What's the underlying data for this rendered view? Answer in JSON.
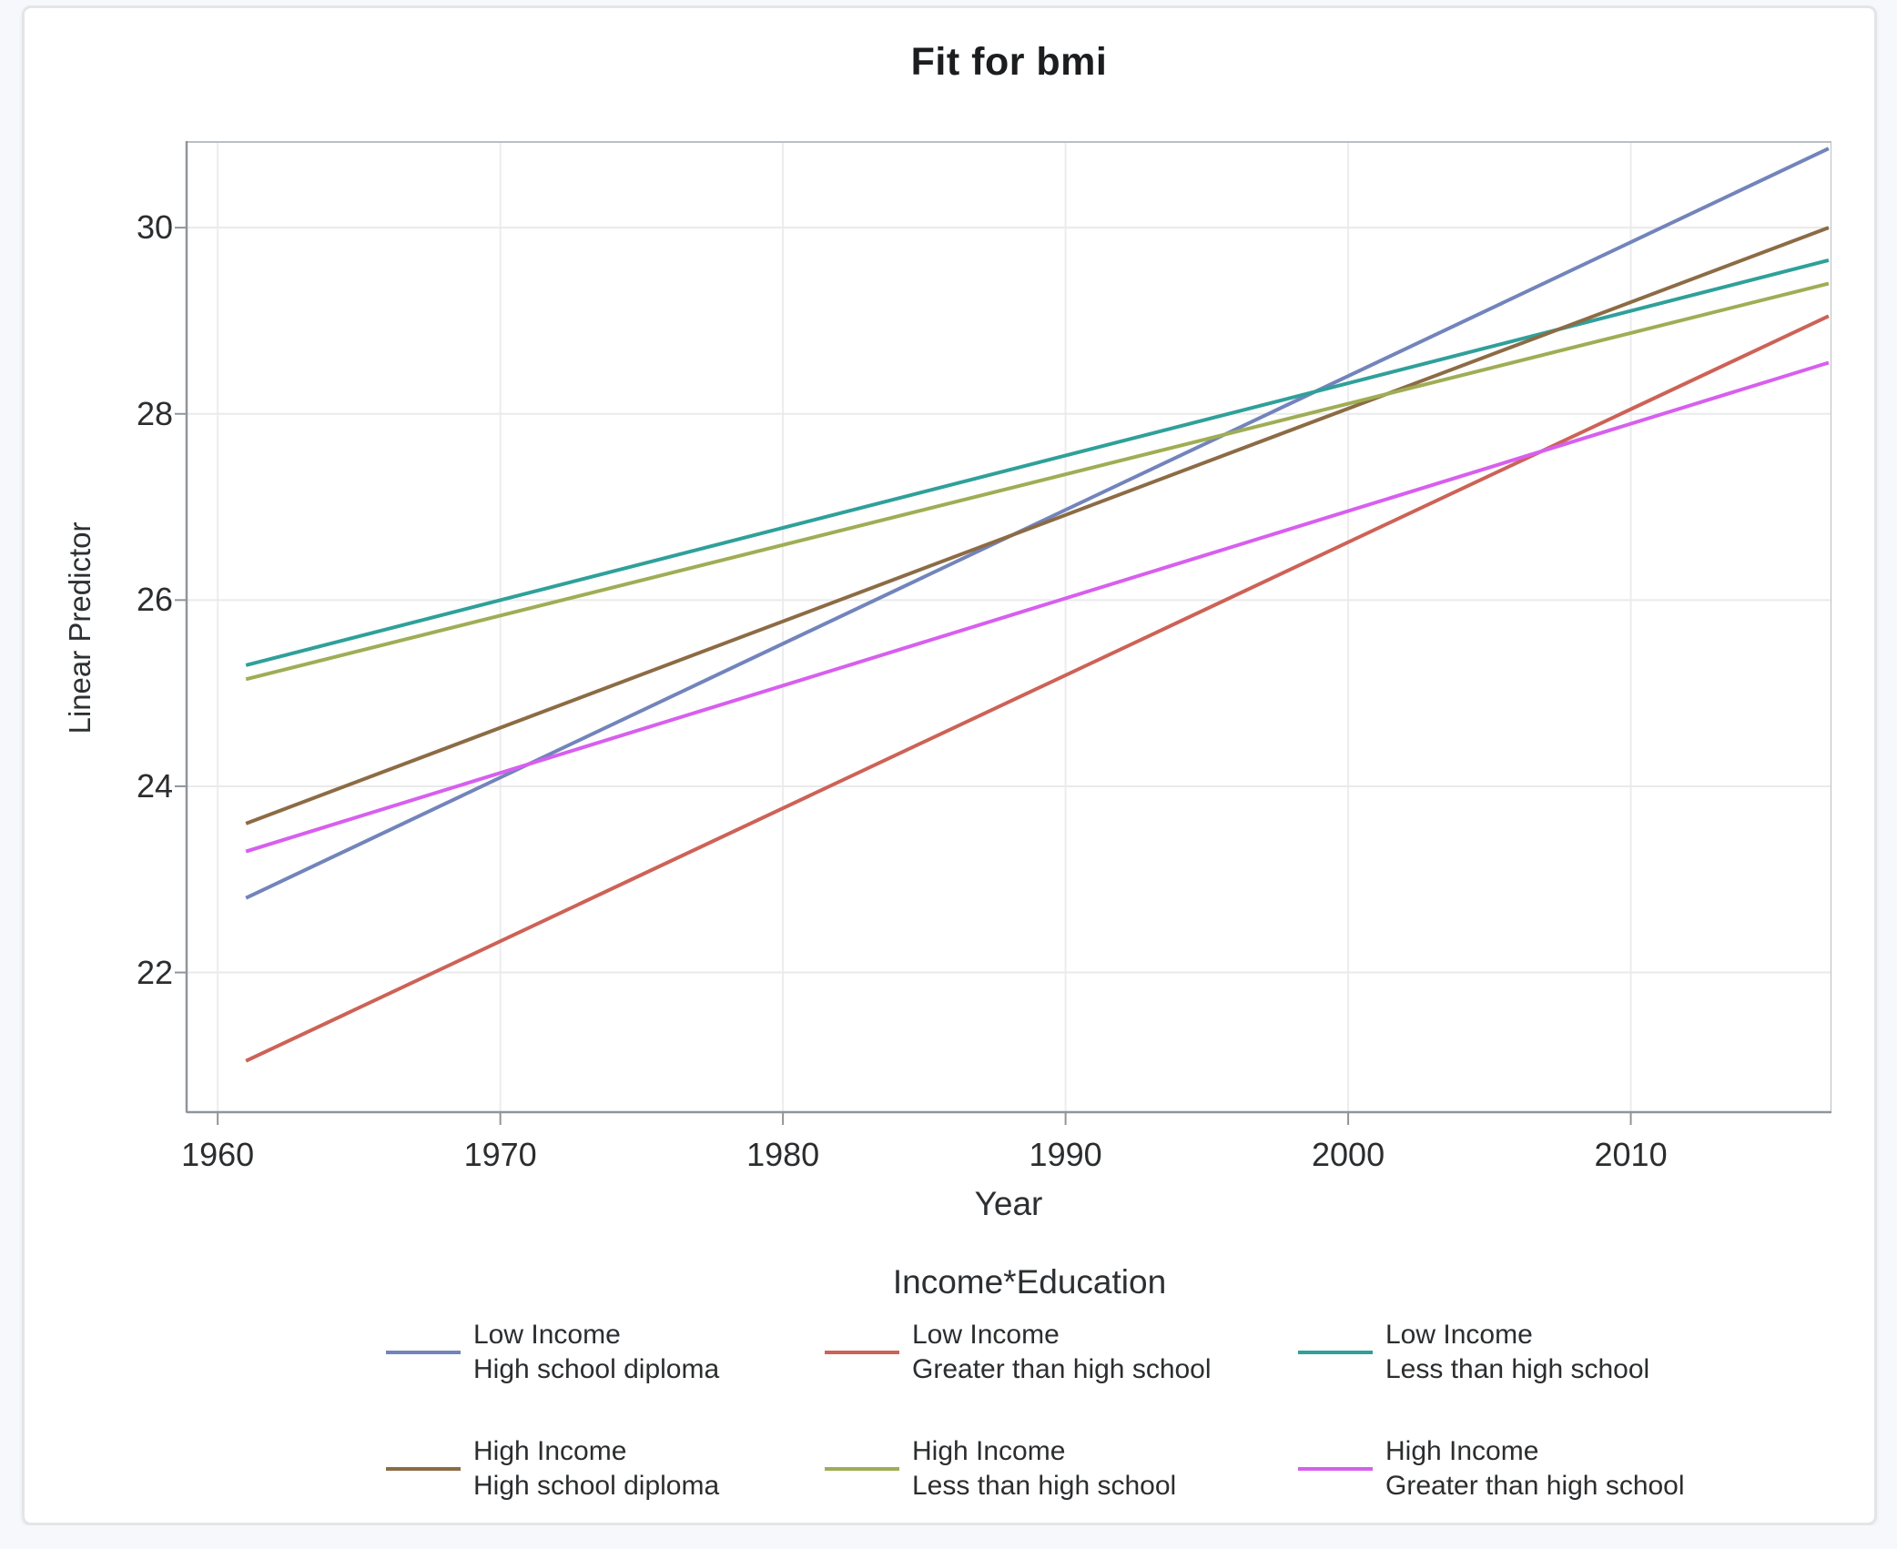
{
  "chart_data": {
    "type": "line",
    "title": "Fit for bmi",
    "xlabel": "Year",
    "ylabel": "Linear Predictor",
    "xlim": [
      1958.9,
      2017.1
    ],
    "ylim": [
      20.5,
      30.93
    ],
    "x_ticks": [
      1960,
      1970,
      1980,
      1990,
      2000,
      2010
    ],
    "y_ticks": [
      22,
      24,
      26,
      28,
      30
    ],
    "grid": true,
    "x": [
      1961,
      2017
    ],
    "series": [
      {
        "income": "Low Income",
        "education": "High school diploma",
        "color": "#7284bb",
        "values": [
          22.8,
          30.85
        ]
      },
      {
        "income": "Low Income",
        "education": "Greater than high school",
        "color": "#cd6257",
        "values": [
          21.05,
          29.05
        ]
      },
      {
        "income": "Low Income",
        "education": "Less than high school",
        "color": "#2fa09a",
        "values": [
          25.3,
          29.65
        ]
      },
      {
        "income": "High Income",
        "education": "High school diploma",
        "color": "#8c6b45",
        "values": [
          23.6,
          30.0
        ]
      },
      {
        "income": "High Income",
        "education": "Less than high school",
        "color": "#9fad55",
        "values": [
          25.15,
          29.4
        ]
      },
      {
        "income": "High Income",
        "education": "Greater than high school",
        "color": "#d75fee",
        "values": [
          23.3,
          28.55
        ]
      }
    ],
    "legend": {
      "title": "Income*Education",
      "position": "bottom",
      "rows": [
        [
          0,
          1,
          2
        ],
        [
          3,
          4,
          5
        ]
      ]
    }
  }
}
